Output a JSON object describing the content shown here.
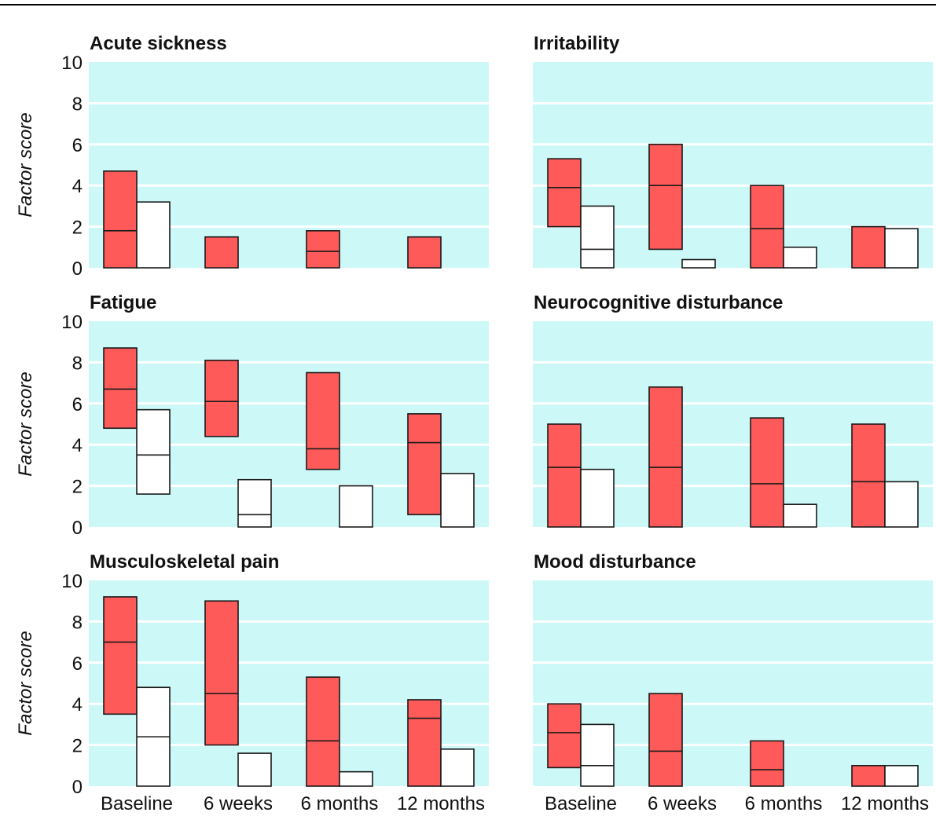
{
  "figure": {
    "ylabel": "Factor score",
    "colors": {
      "plot_bg": "#ccf8f8",
      "grid": "#ffffff",
      "group_a": "#fe5a5a",
      "group_b": "#ffffff",
      "outline": "#1a1a1a",
      "rule": "#000000"
    }
  },
  "chart_data": [
    {
      "type": "bar",
      "subtype": "floating-box",
      "title": "Acute sickness",
      "ylabel": "Factor score",
      "ylim": [
        0,
        10
      ],
      "yticks": [
        0,
        2,
        4,
        6,
        8,
        10
      ],
      "grid": true,
      "categories": [
        "Baseline",
        "6 weeks",
        "6 months",
        "12 months"
      ],
      "series": [
        {
          "color": "#fe5a5a",
          "boxes": [
            {
              "low": 0,
              "median": 1.8,
              "high": 4.7
            },
            {
              "low": 0,
              "median": null,
              "high": 1.5
            },
            {
              "low": 0,
              "median": 0.8,
              "high": 1.8
            },
            {
              "low": 0,
              "median": null,
              "high": 1.5
            }
          ]
        },
        {
          "color": "#ffffff",
          "boxes": [
            {
              "low": 0,
              "median": null,
              "high": 3.2
            },
            null,
            null,
            null
          ]
        }
      ]
    },
    {
      "type": "bar",
      "subtype": "floating-box",
      "title": "Irritability",
      "ylabel": "",
      "ylim": [
        0,
        10
      ],
      "yticks": [],
      "grid": true,
      "categories": [
        "Baseline",
        "6 weeks",
        "6 months",
        "12 months"
      ],
      "series": [
        {
          "color": "#fe5a5a",
          "boxes": [
            {
              "low": 2.0,
              "median": 3.9,
              "high": 5.3
            },
            {
              "low": 0.9,
              "median": 4.0,
              "high": 6.0
            },
            {
              "low": 0,
              "median": 1.9,
              "high": 4.0
            },
            {
              "low": 0,
              "median": null,
              "high": 2.0
            }
          ]
        },
        {
          "color": "#ffffff",
          "boxes": [
            {
              "low": 0,
              "median": 0.9,
              "high": 3.0
            },
            {
              "low": 0,
              "median": null,
              "high": 0.4
            },
            {
              "low": 0,
              "median": null,
              "high": 1.0
            },
            {
              "low": 0,
              "median": null,
              "high": 1.9
            }
          ]
        }
      ]
    },
    {
      "type": "bar",
      "subtype": "floating-box",
      "title": "Fatigue",
      "ylabel": "Factor score",
      "ylim": [
        0,
        10
      ],
      "yticks": [
        0,
        2,
        4,
        6,
        8,
        10
      ],
      "grid": true,
      "categories": [
        "Baseline",
        "6 weeks",
        "6 months",
        "12 months"
      ],
      "series": [
        {
          "color": "#fe5a5a",
          "boxes": [
            {
              "low": 4.8,
              "median": 6.7,
              "high": 8.7
            },
            {
              "low": 4.4,
              "median": 6.1,
              "high": 8.1
            },
            {
              "low": 2.8,
              "median": 3.8,
              "high": 7.5
            },
            {
              "low": 0.6,
              "median": 4.1,
              "high": 5.5
            }
          ]
        },
        {
          "color": "#ffffff",
          "boxes": [
            {
              "low": 1.6,
              "median": 3.5,
              "high": 5.7
            },
            {
              "low": 0,
              "median": 0.6,
              "high": 2.3
            },
            {
              "low": 0,
              "median": null,
              "high": 2.0
            },
            {
              "low": 0,
              "median": null,
              "high": 2.6
            }
          ]
        }
      ]
    },
    {
      "type": "bar",
      "subtype": "floating-box",
      "title": "Neurocognitive disturbance",
      "ylabel": "",
      "ylim": [
        0,
        10
      ],
      "yticks": [],
      "grid": true,
      "categories": [
        "Baseline",
        "6 weeks",
        "6 months",
        "12 months"
      ],
      "series": [
        {
          "color": "#fe5a5a",
          "boxes": [
            {
              "low": 0,
              "median": 2.9,
              "high": 5.0
            },
            {
              "low": 0,
              "median": 2.9,
              "high": 6.8
            },
            {
              "low": 0,
              "median": 2.1,
              "high": 5.3
            },
            {
              "low": 0,
              "median": 2.2,
              "high": 5.0
            }
          ]
        },
        {
          "color": "#ffffff",
          "boxes": [
            {
              "low": 0,
              "median": null,
              "high": 2.8
            },
            null,
            {
              "low": 0,
              "median": null,
              "high": 1.1
            },
            {
              "low": 0,
              "median": null,
              "high": 2.2
            }
          ]
        }
      ]
    },
    {
      "type": "bar",
      "subtype": "floating-box",
      "title": "Musculoskeletal pain",
      "ylabel": "Factor score",
      "ylim": [
        0,
        10
      ],
      "yticks": [
        0,
        2,
        4,
        6,
        8,
        10
      ],
      "grid": true,
      "categories": [
        "Baseline",
        "6 weeks",
        "6 months",
        "12 months"
      ],
      "series": [
        {
          "color": "#fe5a5a",
          "boxes": [
            {
              "low": 3.5,
              "median": 7.0,
              "high": 9.2
            },
            {
              "low": 2.0,
              "median": 4.5,
              "high": 9.0
            },
            {
              "low": 0,
              "median": 2.2,
              "high": 5.3
            },
            {
              "low": 0,
              "median": 3.3,
              "high": 4.2
            }
          ]
        },
        {
          "color": "#ffffff",
          "boxes": [
            {
              "low": 0,
              "median": 2.4,
              "high": 4.8
            },
            {
              "low": 0,
              "median": null,
              "high": 1.6
            },
            {
              "low": 0,
              "median": null,
              "high": 0.7
            },
            {
              "low": 0,
              "median": null,
              "high": 1.8
            }
          ]
        }
      ]
    },
    {
      "type": "bar",
      "subtype": "floating-box",
      "title": "Mood disturbance",
      "ylabel": "",
      "ylim": [
        0,
        10
      ],
      "yticks": [],
      "grid": true,
      "categories": [
        "Baseline",
        "6 weeks",
        "6 months",
        "12 months"
      ],
      "series": [
        {
          "color": "#fe5a5a",
          "boxes": [
            {
              "low": 0.9,
              "median": 2.6,
              "high": 4.0
            },
            {
              "low": 0,
              "median": 1.7,
              "high": 4.5
            },
            {
              "low": 0,
              "median": 0.8,
              "high": 2.2
            },
            {
              "low": 0,
              "median": null,
              "high": 1.0
            }
          ]
        },
        {
          "color": "#ffffff",
          "boxes": [
            {
              "low": 0,
              "median": 1.0,
              "high": 3.0
            },
            null,
            null,
            {
              "low": 0,
              "median": null,
              "high": 1.0
            }
          ]
        }
      ]
    }
  ]
}
